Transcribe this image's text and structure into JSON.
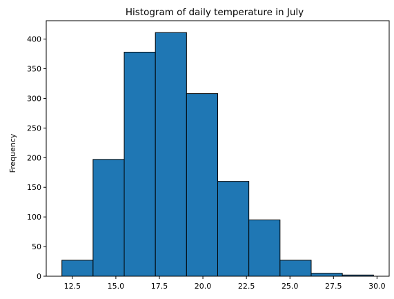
{
  "chart_data": {
    "type": "histogram",
    "title": "Histogram of daily temperature in July",
    "xlabel": "",
    "ylabel": "Frequency",
    "bin_edges": [
      11.9,
      13.69,
      15.48,
      17.27,
      19.06,
      20.85,
      22.64,
      24.43,
      26.22,
      28.01,
      29.8
    ],
    "counts": [
      27,
      197,
      378,
      411,
      308,
      160,
      95,
      27,
      5,
      2
    ],
    "xlim": [
      11.0,
      30.7
    ],
    "ylim": [
      0,
      431
    ],
    "x_ticks": [
      12.5,
      15.0,
      17.5,
      20.0,
      22.5,
      25.0,
      27.5,
      30.0
    ],
    "x_tick_labels": [
      "12.5",
      "15.0",
      "17.5",
      "20.0",
      "22.5",
      "25.0",
      "27.5",
      "30.0"
    ],
    "y_ticks": [
      0,
      50,
      100,
      150,
      200,
      250,
      300,
      350,
      400
    ],
    "y_tick_labels": [
      "0",
      "50",
      "100",
      "150",
      "200",
      "250",
      "300",
      "350",
      "400"
    ],
    "bar_color": "#1f77b4",
    "edge_color": "#000000",
    "grid": false,
    "legend": "none"
  }
}
